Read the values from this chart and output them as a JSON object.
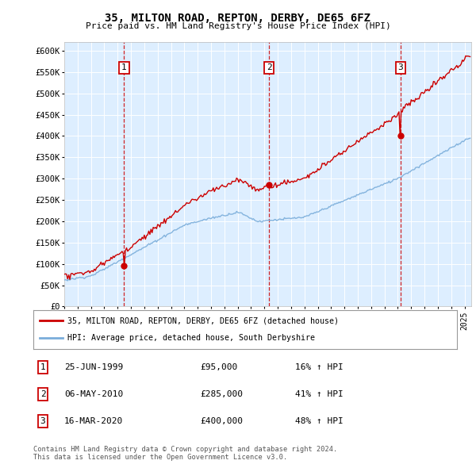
{
  "title": "35, MILTON ROAD, REPTON, DERBY, DE65 6FZ",
  "subtitle": "Price paid vs. HM Land Registry's House Price Index (HPI)",
  "ylabel_ticks": [
    "£0",
    "£50K",
    "£100K",
    "£150K",
    "£200K",
    "£250K",
    "£300K",
    "£350K",
    "£400K",
    "£450K",
    "£500K",
    "£550K",
    "£600K"
  ],
  "ytick_values": [
    0,
    50000,
    100000,
    150000,
    200000,
    250000,
    300000,
    350000,
    400000,
    450000,
    500000,
    550000,
    600000
  ],
  "ylim": [
    0,
    620000
  ],
  "xlim_start": 1995.0,
  "xlim_end": 2025.5,
  "figure_bg_color": "#ffffff",
  "plot_bg_color": "#ddeeff",
  "sale_dates": [
    1999.483,
    2010.354,
    2020.208
  ],
  "sale_prices": [
    95000,
    285000,
    400000
  ],
  "sale_labels": [
    "1",
    "2",
    "3"
  ],
  "sale_date_strs": [
    "25-JUN-1999",
    "06-MAY-2010",
    "16-MAR-2020"
  ],
  "sale_price_strs": [
    "£95,000",
    "£285,000",
    "£400,000"
  ],
  "sale_pct_strs": [
    "16% ↑ HPI",
    "41% ↑ HPI",
    "48% ↑ HPI"
  ],
  "red_line_color": "#cc0000",
  "blue_line_color": "#7aadda",
  "vline_color": "#cc0000",
  "legend_label_red": "35, MILTON ROAD, REPTON, DERBY, DE65 6FZ (detached house)",
  "legend_label_blue": "HPI: Average price, detached house, South Derbyshire",
  "footer": "Contains HM Land Registry data © Crown copyright and database right 2024.\nThis data is licensed under the Open Government Licence v3.0.",
  "table_rows": [
    [
      "1",
      "25-JUN-1999",
      "£95,000",
      "16% ↑ HPI"
    ],
    [
      "2",
      "06-MAY-2010",
      "£285,000",
      "41% ↑ HPI"
    ],
    [
      "3",
      "16-MAR-2020",
      "£400,000",
      "48% ↑ HPI"
    ]
  ]
}
